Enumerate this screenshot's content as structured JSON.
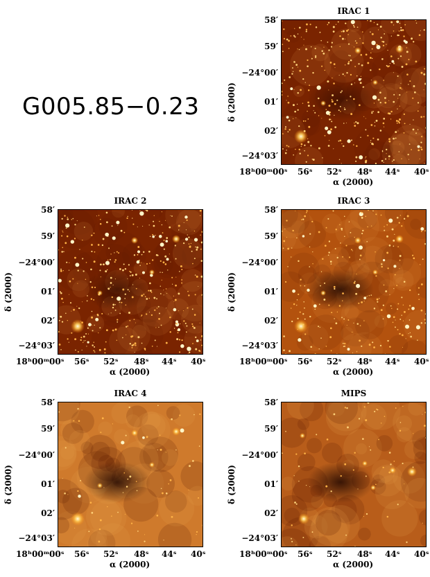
{
  "figure_title": "G005.85−0.23",
  "axes": {
    "ylabel": "δ (2000)",
    "xlabel": "α (2000)",
    "yticks": [
      "58′",
      "59′",
      "−24°00′",
      "01′",
      "02′",
      "−24°03′"
    ],
    "xticks": [
      "18ʰ00ᵐ",
      "00ˢ",
      "56ˢ",
      "52ˢ",
      "48ˢ",
      "44ˢ",
      "40ˢ"
    ]
  },
  "panels": [
    {
      "title": "IRAC 1",
      "style": "stars-dense"
    },
    {
      "title": "IRAC 2",
      "style": "stars-dense"
    },
    {
      "title": "IRAC 3",
      "style": "stars-diffuse"
    },
    {
      "title": "IRAC 4",
      "style": "smooth"
    },
    {
      "title": "MIPS",
      "style": "smooth-bright"
    }
  ]
}
